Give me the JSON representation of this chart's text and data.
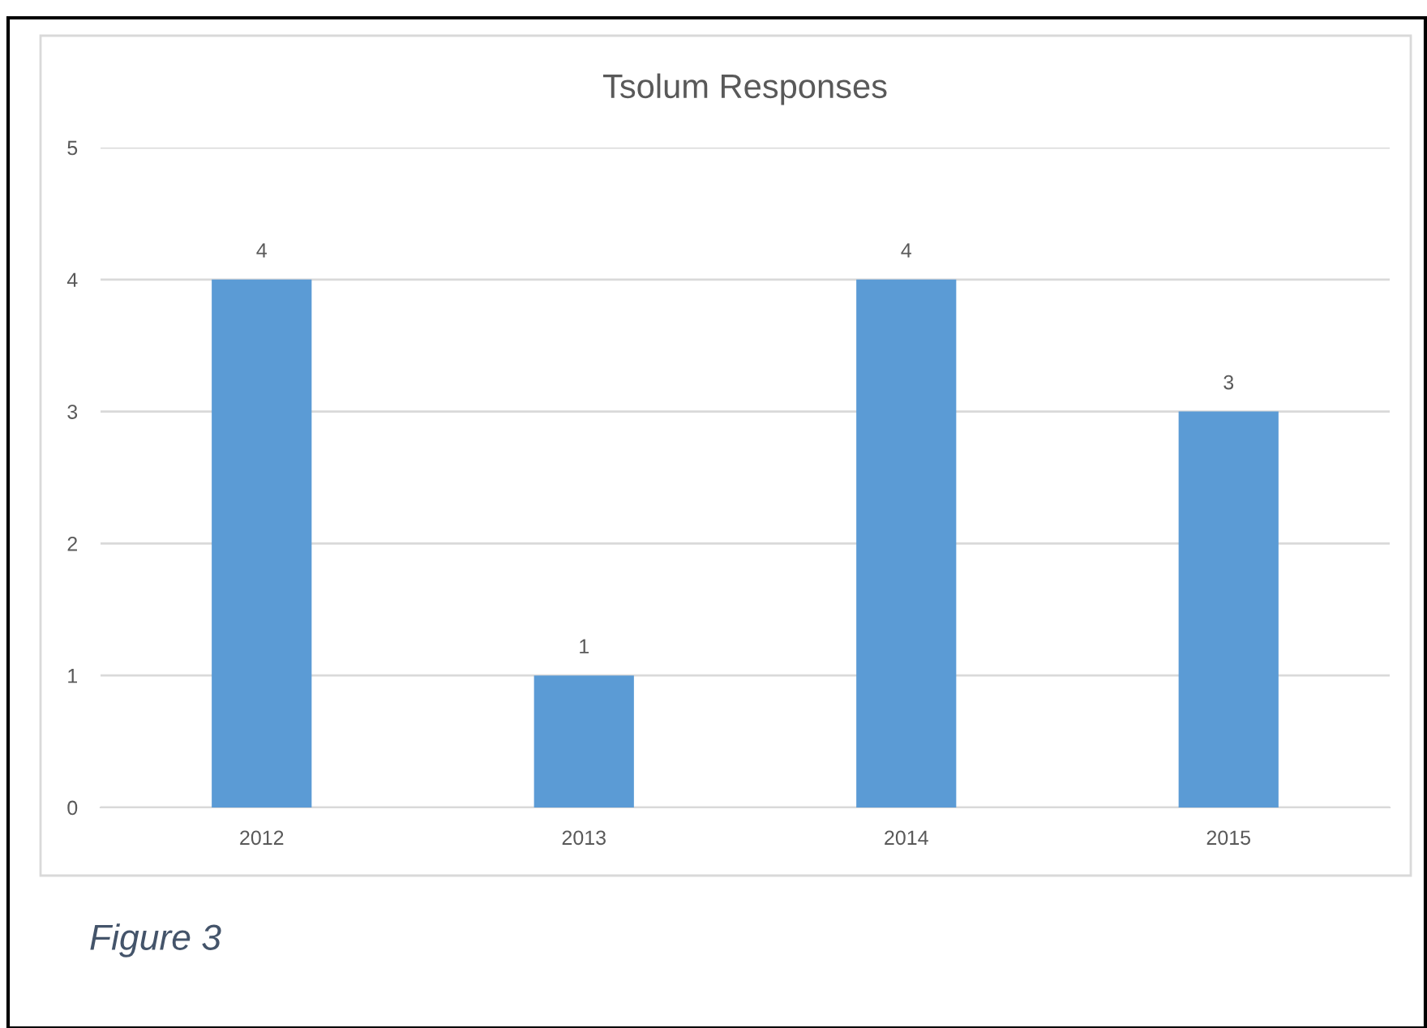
{
  "chart_data": {
    "type": "bar",
    "title": "Tsolum Responses",
    "categories": [
      "2012",
      "2013",
      "2014",
      "2015"
    ],
    "values": [
      4,
      1,
      4,
      3
    ],
    "color": "#5b9bd5",
    "ylim": [
      0,
      5
    ],
    "yticks": [
      0,
      1,
      2,
      3,
      4,
      5
    ],
    "grid": "y",
    "data_labels": true,
    "annotations": [
      "Figure 3"
    ]
  }
}
